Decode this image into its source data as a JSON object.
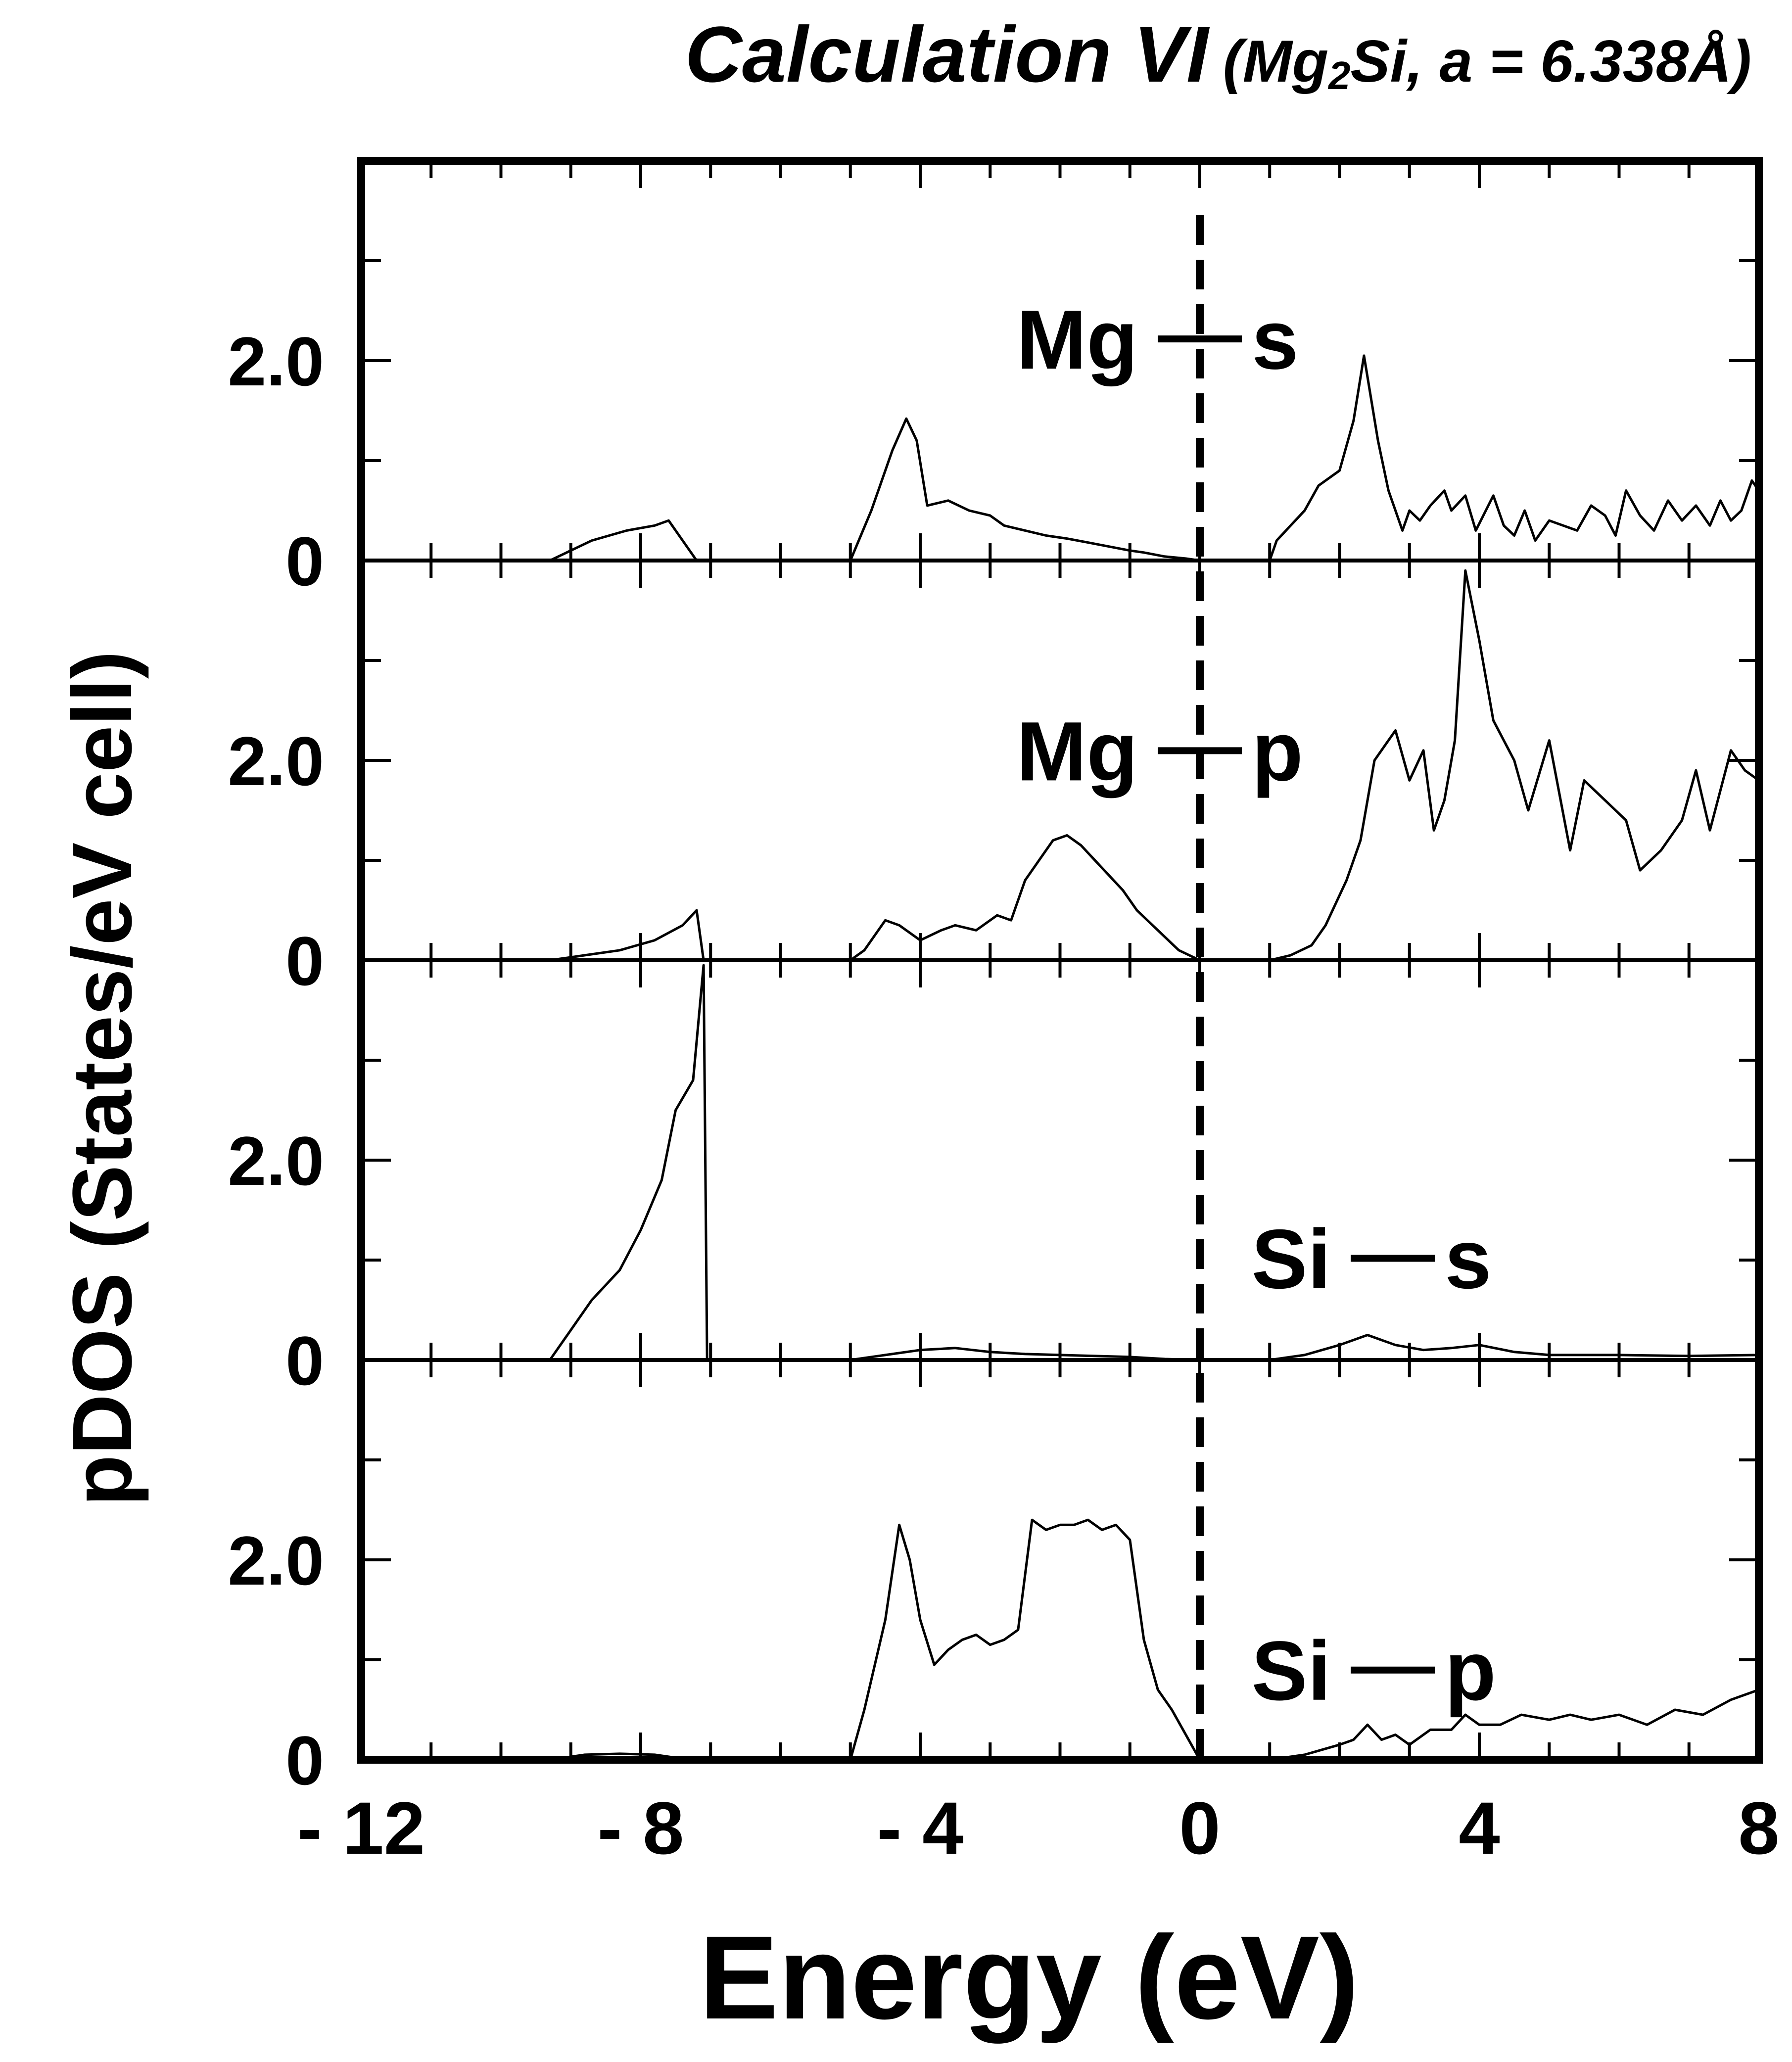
{
  "chart_data": {
    "type": "line",
    "title": "Calculation VI",
    "subtitle_parts": {
      "open": "(Mg",
      "sub": "2",
      "close": "Si, a = 6.338Å)"
    },
    "xlabel": "Energy (eV)",
    "ylabel": "pDOS (States/eV cell)",
    "xlim": [
      -12,
      8
    ],
    "x_ticks": [
      -12,
      -8,
      -4,
      0,
      4,
      8
    ],
    "x_tick_labels": [
      "- 12",
      "- 8",
      "- 4",
      "0",
      "4",
      "8"
    ],
    "y_tick_labels": [
      "0",
      "2.0"
    ],
    "ylim": [
      0,
      4.0
    ],
    "fermi_level": 0,
    "colors": {
      "line": "#000000",
      "background": "#ffffff"
    },
    "panels": [
      {
        "label_left": "Mg",
        "label_right": "s",
        "series": {
          "x": [
            -9.3,
            -9.0,
            -8.7,
            -8.2,
            -7.8,
            -7.6,
            -7.2,
            -5.0,
            -4.7,
            -4.4,
            -4.2,
            -4.05,
            -3.9,
            -3.6,
            -3.3,
            -3.0,
            -2.8,
            -2.5,
            -2.2,
            -1.9,
            -1.6,
            -1.3,
            -1.0,
            -0.8,
            -0.5,
            -0.2,
            0.0,
            1.0,
            1.1,
            1.5,
            1.7,
            2.0,
            2.2,
            2.35,
            2.55,
            2.7,
            2.9,
            3.0,
            3.15,
            3.3,
            3.5,
            3.6,
            3.8,
            3.95,
            4.2,
            4.35,
            4.5,
            4.65,
            4.8,
            5.0,
            5.2,
            5.4,
            5.6,
            5.8,
            5.95,
            6.1,
            6.3,
            6.5,
            6.7,
            6.9,
            7.1,
            7.3,
            7.45,
            7.6,
            7.75,
            7.9,
            8.0
          ],
          "y": [
            0,
            0.1,
            0.2,
            0.3,
            0.35,
            0.4,
            0,
            0,
            0.5,
            1.1,
            1.42,
            1.2,
            0.55,
            0.6,
            0.5,
            0.45,
            0.35,
            0.3,
            0.25,
            0.22,
            0.18,
            0.14,
            0.1,
            0.08,
            0.04,
            0.02,
            0.0,
            0,
            0.2,
            0.5,
            0.75,
            0.9,
            1.4,
            2.05,
            1.2,
            0.7,
            0.3,
            0.5,
            0.4,
            0.55,
            0.7,
            0.5,
            0.65,
            0.3,
            0.65,
            0.35,
            0.25,
            0.5,
            0.2,
            0.4,
            0.35,
            0.3,
            0.55,
            0.45,
            0.25,
            0.7,
            0.45,
            0.3,
            0.6,
            0.4,
            0.55,
            0.35,
            0.6,
            0.4,
            0.5,
            0.8,
            0.7
          ],
          "breaks": [
            7,
            27
          ]
        }
      },
      {
        "label_left": "Mg",
        "label_right": "p",
        "series": {
          "x": [
            -9.3,
            -8.8,
            -8.3,
            -7.8,
            -7.4,
            -7.2,
            -7.1,
            -5.0,
            -4.8,
            -4.5,
            -4.3,
            -4.0,
            -3.7,
            -3.5,
            -3.2,
            -2.9,
            -2.7,
            -2.5,
            -2.3,
            -2.1,
            -1.9,
            -1.7,
            -1.5,
            -1.3,
            -1.1,
            -0.9,
            -0.6,
            -0.3,
            0.0,
            1.0,
            1.3,
            1.6,
            1.8,
            2.1,
            2.3,
            2.5,
            2.8,
            3.0,
            3.2,
            3.35,
            3.5,
            3.65,
            3.8,
            4.0,
            4.2,
            4.5,
            4.7,
            5.0,
            5.3,
            5.5,
            5.8,
            6.1,
            6.3,
            6.6,
            6.9,
            7.1,
            7.3,
            7.6,
            7.8,
            8.0
          ],
          "y": [
            0,
            0.05,
            0.1,
            0.2,
            0.35,
            0.5,
            0,
            0,
            0.1,
            0.4,
            0.35,
            0.2,
            0.3,
            0.35,
            0.3,
            0.45,
            0.4,
            0.8,
            1.0,
            1.2,
            1.25,
            1.15,
            1.0,
            0.85,
            0.7,
            0.5,
            0.3,
            0.1,
            0.0,
            0,
            0.05,
            0.15,
            0.35,
            0.8,
            1.2,
            2.0,
            2.3,
            1.8,
            2.1,
            1.3,
            1.6,
            2.2,
            3.9,
            3.2,
            2.4,
            2.0,
            1.5,
            2.2,
            1.1,
            1.8,
            1.6,
            1.4,
            0.9,
            1.1,
            1.4,
            1.9,
            1.3,
            2.1,
            1.9,
            1.8
          ],
          "breaks": [
            7,
            29
          ]
        }
      },
      {
        "label_left": "Si",
        "label_right": "s",
        "series": {
          "x": [
            -9.3,
            -9.0,
            -8.7,
            -8.3,
            -8.0,
            -7.7,
            -7.5,
            -7.25,
            -7.1,
            -7.05,
            -5.0,
            -4.5,
            -4.0,
            -3.5,
            -3.0,
            -2.5,
            -2.0,
            -1.5,
            -1.0,
            -0.5,
            0.0,
            1.0,
            1.5,
            2.0,
            2.4,
            2.8,
            3.2,
            3.6,
            4.0,
            4.5,
            5.0,
            6.0,
            7.0,
            8.0
          ],
          "y": [
            0,
            0.3,
            0.6,
            0.9,
            1.3,
            1.8,
            2.5,
            2.8,
            3.95,
            0,
            0,
            0.05,
            0.1,
            0.12,
            0.08,
            0.06,
            0.05,
            0.04,
            0.03,
            0.01,
            0,
            0,
            0.05,
            0.15,
            0.25,
            0.15,
            0.1,
            0.12,
            0.15,
            0.08,
            0.05,
            0.05,
            0.04,
            0.05
          ],
          "breaks": [
            10,
            21
          ]
        }
      },
      {
        "label_left": "Si",
        "label_right": "p",
        "series": {
          "x": [
            -9.3,
            -8.8,
            -8.3,
            -7.8,
            -7.3,
            -5.0,
            -4.8,
            -4.5,
            -4.3,
            -4.15,
            -4.0,
            -3.8,
            -3.6,
            -3.4,
            -3.2,
            -3.0,
            -2.8,
            -2.6,
            -2.4,
            -2.2,
            -2.0,
            -1.8,
            -1.6,
            -1.4,
            -1.2,
            -1.0,
            -0.8,
            -0.6,
            -0.4,
            -0.2,
            0.0,
            1.0,
            1.5,
            2.0,
            2.2,
            2.4,
            2.6,
            2.8,
            3.0,
            3.3,
            3.6,
            3.8,
            4.0,
            4.3,
            4.6,
            5.0,
            5.3,
            5.6,
            6.0,
            6.4,
            6.8,
            7.2,
            7.6,
            8.0
          ],
          "y": [
            0,
            0.05,
            0.06,
            0.05,
            0,
            0,
            0.5,
            1.4,
            2.35,
            2.0,
            1.4,
            0.95,
            1.1,
            1.2,
            1.25,
            1.15,
            1.2,
            1.3,
            2.4,
            2.3,
            2.35,
            2.35,
            2.4,
            2.3,
            2.35,
            2.2,
            1.2,
            0.7,
            0.5,
            0.25,
            0.0,
            0,
            0.05,
            0.15,
            0.2,
            0.35,
            0.2,
            0.25,
            0.15,
            0.3,
            0.3,
            0.45,
            0.35,
            0.35,
            0.45,
            0.4,
            0.45,
            0.4,
            0.45,
            0.35,
            0.5,
            0.45,
            0.6,
            0.7
          ],
          "breaks": [
            5,
            31
          ]
        }
      }
    ]
  }
}
